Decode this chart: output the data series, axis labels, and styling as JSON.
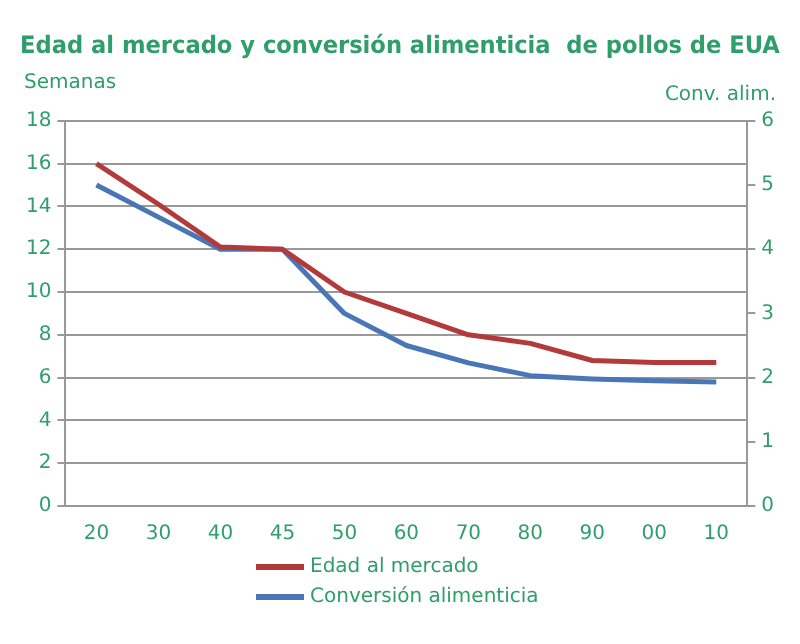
{
  "chart_data": {
    "type": "line",
    "title": "Edad al mercado y conversión alimenticia  de pollos de EUA",
    "ylabel": "Semanas",
    "y2label": "Conv. alim.",
    "categories": [
      "20",
      "30",
      "40",
      "45",
      "50",
      "60",
      "70",
      "80",
      "90",
      "00",
      "10"
    ],
    "series": [
      {
        "name": "Edad al mercado",
        "color": "#b33a3a",
        "values": [
          16,
          14.1,
          12.1,
          12,
          10,
          9,
          8,
          7.6,
          6.8,
          6.7,
          6.7
        ]
      },
      {
        "name": "Conversión alimenticia",
        "color": "#4a76b8",
        "axis": "y2",
        "values": [
          5,
          4.5,
          4,
          4,
          3,
          2.5,
          2.23,
          2.03,
          1.98,
          1.95,
          1.93
        ]
      }
    ],
    "ylim": [
      0,
      18
    ],
    "yticks": [
      0,
      2,
      4,
      6,
      8,
      10,
      12,
      14,
      16,
      18
    ],
    "y2lim": [
      0,
      6
    ],
    "y2ticks": [
      0,
      1,
      2,
      3,
      4,
      5,
      6
    ],
    "grid": "y",
    "legend": "bottom",
    "marker": "none",
    "line_style": "solid"
  }
}
